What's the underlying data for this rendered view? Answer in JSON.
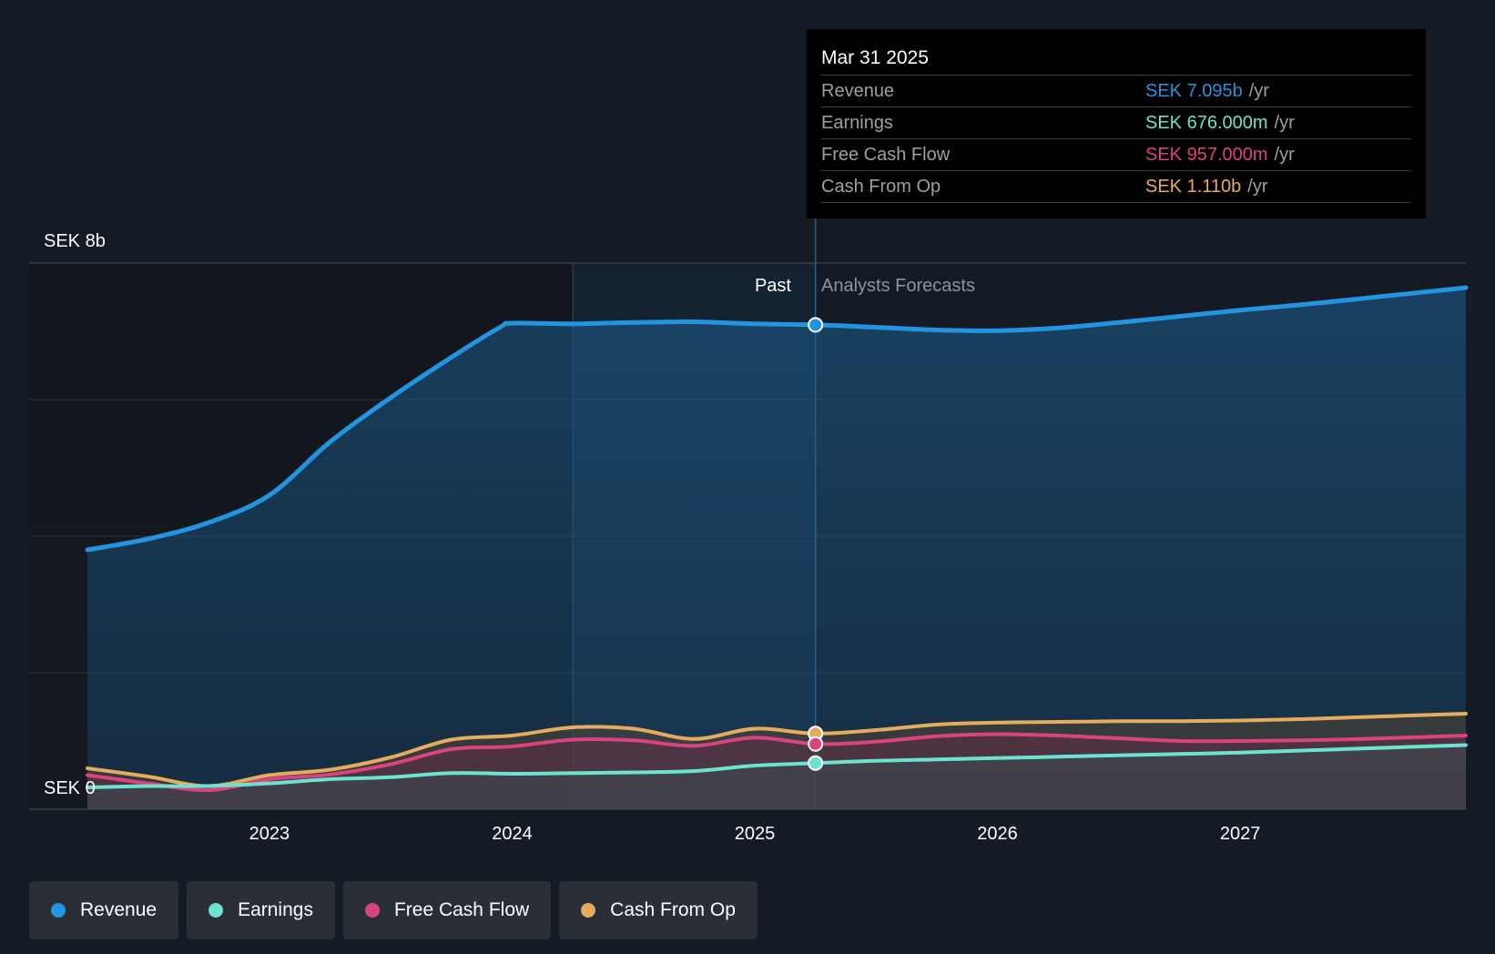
{
  "chart_data": {
    "type": "area",
    "y_unit_label_top": "SEK 8b",
    "y_unit_label_bottom": "SEK 0",
    "ylim": [
      0,
      8
    ],
    "xlim": [
      2022.25,
      2027.93
    ],
    "x_ticks": [
      {
        "value": 2023,
        "label": "2023"
      },
      {
        "value": 2024,
        "label": "2024"
      },
      {
        "value": 2025,
        "label": "2025"
      },
      {
        "value": 2026,
        "label": "2026"
      },
      {
        "value": 2027,
        "label": "2027"
      }
    ],
    "gridlines": [
      2,
      4,
      6,
      8
    ],
    "past_label": "Past",
    "forecast_label": "Analysts Forecasts",
    "split_x": 2025.25,
    "highlight_range": [
      2024.25,
      2025.25
    ],
    "series": [
      {
        "name": "Revenue",
        "color": "#2394df",
        "fill": true,
        "points": [
          [
            2022.25,
            3.8
          ],
          [
            2022.5,
            3.96
          ],
          [
            2022.75,
            4.2
          ],
          [
            2023.0,
            4.6
          ],
          [
            2023.25,
            5.38
          ],
          [
            2023.5,
            6.03
          ],
          [
            2023.75,
            6.62
          ],
          [
            2023.95,
            7.06
          ],
          [
            2024.0,
            7.12
          ],
          [
            2024.25,
            7.11
          ],
          [
            2024.5,
            7.13
          ],
          [
            2024.75,
            7.14
          ],
          [
            2025.0,
            7.11
          ],
          [
            2025.25,
            7.095
          ],
          [
            2025.5,
            7.06
          ],
          [
            2025.75,
            7.02
          ],
          [
            2026.0,
            7.01
          ],
          [
            2026.25,
            7.05
          ],
          [
            2026.5,
            7.13
          ],
          [
            2026.75,
            7.22
          ],
          [
            2027.0,
            7.31
          ],
          [
            2027.25,
            7.39
          ],
          [
            2027.5,
            7.48
          ],
          [
            2027.93,
            7.64
          ]
        ]
      },
      {
        "name": "Earnings",
        "color": "#6be3d0",
        "fill": true,
        "points": [
          [
            2022.25,
            0.32
          ],
          [
            2022.5,
            0.34
          ],
          [
            2022.75,
            0.34
          ],
          [
            2023.0,
            0.38
          ],
          [
            2023.25,
            0.44
          ],
          [
            2023.5,
            0.47
          ],
          [
            2023.75,
            0.53
          ],
          [
            2024.0,
            0.52
          ],
          [
            2024.25,
            0.53
          ],
          [
            2024.5,
            0.54
          ],
          [
            2024.75,
            0.56
          ],
          [
            2025.0,
            0.64
          ],
          [
            2025.25,
            0.676
          ],
          [
            2025.5,
            0.71
          ],
          [
            2025.75,
            0.73
          ],
          [
            2026.0,
            0.75
          ],
          [
            2026.25,
            0.77
          ],
          [
            2026.5,
            0.79
          ],
          [
            2026.75,
            0.81
          ],
          [
            2027.0,
            0.83
          ],
          [
            2027.25,
            0.86
          ],
          [
            2027.5,
            0.89
          ],
          [
            2027.93,
            0.94
          ]
        ]
      },
      {
        "name": "Free Cash Flow",
        "color": "#d9437f",
        "fill": true,
        "points": [
          [
            2022.25,
            0.5
          ],
          [
            2022.5,
            0.38
          ],
          [
            2022.75,
            0.28
          ],
          [
            2023.0,
            0.44
          ],
          [
            2023.25,
            0.51
          ],
          [
            2023.5,
            0.66
          ],
          [
            2023.75,
            0.88
          ],
          [
            2024.0,
            0.92
          ],
          [
            2024.25,
            1.02
          ],
          [
            2024.5,
            1.01
          ],
          [
            2024.75,
            0.93
          ],
          [
            2025.0,
            1.05
          ],
          [
            2025.25,
            0.957
          ],
          [
            2025.5,
            0.99
          ],
          [
            2025.75,
            1.07
          ],
          [
            2026.0,
            1.1
          ],
          [
            2026.25,
            1.08
          ],
          [
            2026.5,
            1.04
          ],
          [
            2026.75,
            1.0
          ],
          [
            2027.0,
            1.0
          ],
          [
            2027.25,
            1.01
          ],
          [
            2027.5,
            1.03
          ],
          [
            2027.93,
            1.08
          ]
        ]
      },
      {
        "name": "Cash From Op",
        "color": "#e6ac5e",
        "fill": true,
        "points": [
          [
            2022.25,
            0.6
          ],
          [
            2022.5,
            0.48
          ],
          [
            2022.75,
            0.34
          ],
          [
            2023.0,
            0.5
          ],
          [
            2023.25,
            0.58
          ],
          [
            2023.5,
            0.76
          ],
          [
            2023.75,
            1.02
          ],
          [
            2024.0,
            1.08
          ],
          [
            2024.25,
            1.2
          ],
          [
            2024.5,
            1.18
          ],
          [
            2024.75,
            1.03
          ],
          [
            2025.0,
            1.18
          ],
          [
            2025.25,
            1.11
          ],
          [
            2025.5,
            1.16
          ],
          [
            2025.75,
            1.24
          ],
          [
            2026.0,
            1.27
          ],
          [
            2026.25,
            1.28
          ],
          [
            2026.5,
            1.29
          ],
          [
            2026.75,
            1.29
          ],
          [
            2027.0,
            1.3
          ],
          [
            2027.25,
            1.32
          ],
          [
            2027.5,
            1.35
          ],
          [
            2027.93,
            1.4
          ]
        ]
      }
    ]
  },
  "tooltip": {
    "date": "Mar 31 2025",
    "rows": [
      {
        "name": "Revenue",
        "value": "SEK 7.095b",
        "unit": "/yr",
        "color": "#2394df"
      },
      {
        "name": "Earnings",
        "value": "SEK 676.000m",
        "unit": "/yr",
        "color": "#6be3d0"
      },
      {
        "name": "Free Cash Flow",
        "value": "SEK 957.000m",
        "unit": "/yr",
        "color": "#d9437f"
      },
      {
        "name": "Cash From Op",
        "value": "SEK 1.110b",
        "unit": "/yr",
        "color": "#e6ac5e"
      }
    ]
  },
  "legend": [
    {
      "label": "Revenue",
      "color": "#2394df"
    },
    {
      "label": "Earnings",
      "color": "#6be3d0"
    },
    {
      "label": "Free Cash Flow",
      "color": "#d9437f"
    },
    {
      "label": "Cash From Op",
      "color": "#e6ac5e"
    }
  ]
}
